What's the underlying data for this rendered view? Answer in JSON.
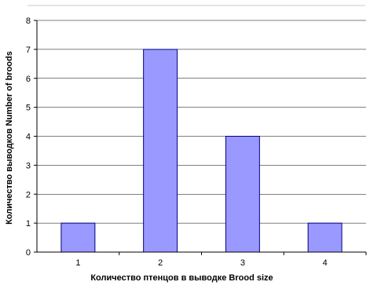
{
  "chart_data": {
    "type": "bar",
    "categories": [
      "1",
      "2",
      "3",
      "4"
    ],
    "values": [
      1,
      7,
      4,
      1
    ],
    "title": "",
    "xlabel": "Количество птенцов в выводке Brood size",
    "ylabel": "Количество выводков Number of broods",
    "ylim": [
      0,
      8
    ],
    "yticks": [
      "0",
      "1",
      "2",
      "3",
      "4",
      "5",
      "6",
      "7",
      "8"
    ],
    "grid": true,
    "legend": "none",
    "bar_color": "#9999ff",
    "bar_edge_color": "#000080",
    "grid_color": "#000000"
  }
}
